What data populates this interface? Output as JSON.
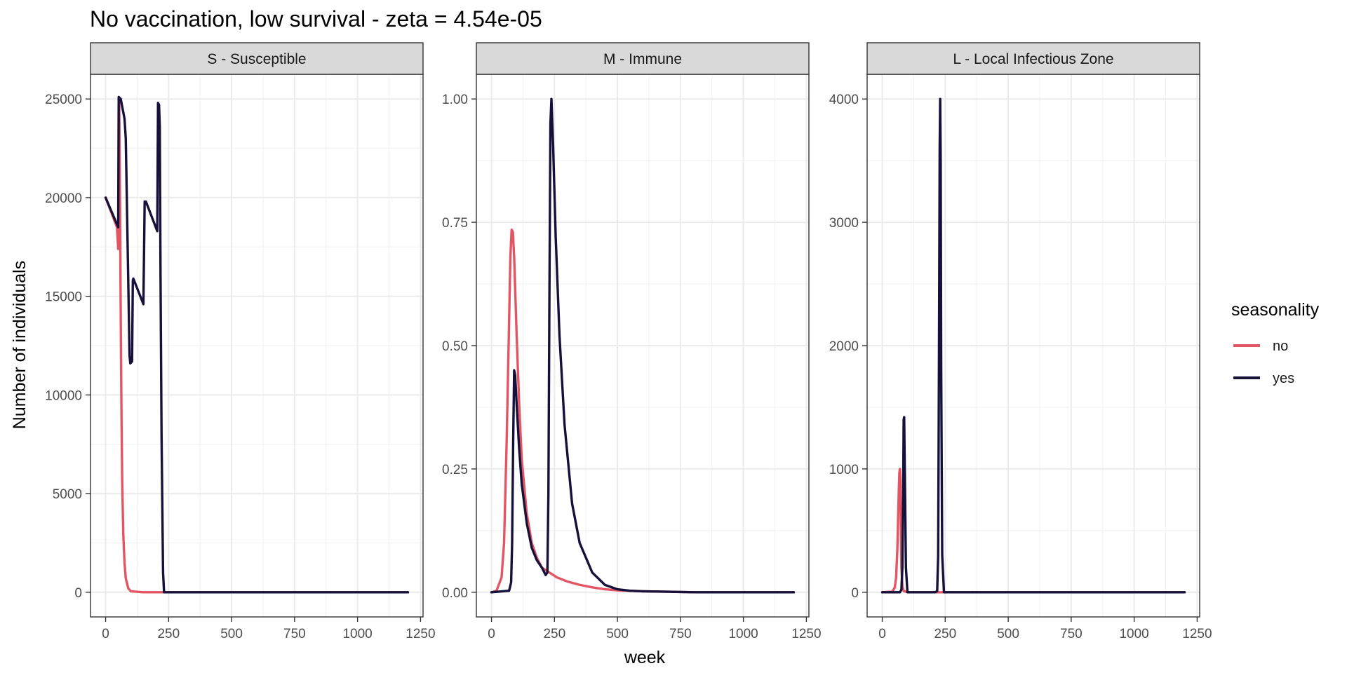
{
  "chart_data": {
    "type": "line",
    "title": "No vaccination, low survival - zeta = 4.54e-05",
    "xlabel": "week",
    "ylabel": "Number of individuals",
    "grid": true,
    "legend": {
      "title": "seasonality",
      "placement": "right",
      "entries": [
        {
          "label": "no",
          "color": "#e45563"
        },
        {
          "label": "yes",
          "color": "#15113a"
        }
      ]
    },
    "x_ticks": [
      0,
      250,
      500,
      750,
      1000,
      1250
    ],
    "x_tick_labels": [
      "0",
      "250",
      "500",
      "750",
      "1000",
      "1250"
    ],
    "panels": [
      {
        "strip": "S - Susceptible",
        "xlim": [
          -60,
          1260
        ],
        "ylim": [
          -1250,
          26250
        ],
        "y_ticks": [
          0,
          5000,
          10000,
          15000,
          20000,
          25000
        ],
        "y_tick_labels": [
          "0",
          "5000",
          "10000",
          "15000",
          "20000",
          "25000"
        ],
        "series": [
          {
            "name": "no",
            "color": "#e45563",
            "x": [
              0,
              45,
              50,
              52,
              54,
              55,
              57,
              60,
              63,
              66,
              70,
              75,
              80,
              90,
              100,
              150,
              250,
              600,
              1200
            ],
            "y": [
              20000,
              18500,
              17400,
              18000,
              25000,
              23500,
              20000,
              14000,
              9000,
              5500,
              3000,
              1500,
              700,
              200,
              50,
              0,
              0,
              0,
              0
            ]
          },
          {
            "name": "yes",
            "color": "#15113a",
            "x": [
              0,
              50,
              52,
              60,
              75,
              80,
              95,
              98,
              105,
              108,
              110,
              150,
              155,
              160,
              205,
              208,
              212,
              215,
              218,
              222,
              228,
              232,
              240,
              600,
              1200
            ],
            "y": [
              20000,
              18500,
              25100,
              25000,
              24000,
              23000,
              12000,
              11600,
              11700,
              15800,
              15900,
              14600,
              19800,
              19800,
              18300,
              24800,
              24700,
              23600,
              16000,
              8000,
              1000,
              0,
              0,
              0,
              0
            ]
          }
        ]
      },
      {
        "strip": "M - Immune",
        "xlim": [
          -60,
          1260
        ],
        "ylim": [
          -0.05,
          1.05
        ],
        "y_ticks": [
          0,
          0.25,
          0.5,
          0.75,
          1.0
        ],
        "y_tick_labels": [
          "0.00",
          "0.25",
          "0.50",
          "0.75",
          "1.00"
        ],
        "series": [
          {
            "name": "no",
            "color": "#e45563",
            "x": [
              0,
              20,
              40,
              50,
              60,
              70,
              75,
              80,
              85,
              90,
              95,
              100,
              110,
              120,
              140,
              160,
              180,
              200,
              230,
              260,
              300,
              350,
              400,
              450,
              500,
              600,
              700,
              800,
              1200
            ],
            "y": [
              0,
              0.003,
              0.03,
              0.1,
              0.3,
              0.55,
              0.68,
              0.735,
              0.73,
              0.68,
              0.6,
              0.52,
              0.38,
              0.27,
              0.16,
              0.1,
              0.07,
              0.05,
              0.04,
              0.03,
              0.022,
              0.015,
              0.01,
              0.006,
              0.004,
              0.002,
              0.001,
              0,
              0
            ]
          },
          {
            "name": "yes",
            "color": "#15113a",
            "x": [
              0,
              70,
              78,
              82,
              86,
              90,
              94,
              100,
              110,
              120,
              140,
              160,
              180,
              200,
              215,
              222,
              226,
              230,
              234,
              238,
              245,
              255,
              270,
              290,
              320,
              350,
              400,
              450,
              500,
              550,
              600,
              700,
              800,
              1200
            ],
            "y": [
              0,
              0.003,
              0.02,
              0.1,
              0.3,
              0.45,
              0.44,
              0.38,
              0.29,
              0.22,
              0.14,
              0.09,
              0.065,
              0.05,
              0.035,
              0.04,
              0.2,
              0.6,
              0.95,
              1.0,
              0.9,
              0.72,
              0.52,
              0.34,
              0.18,
              0.1,
              0.04,
              0.015,
              0.006,
              0.003,
              0.002,
              0.001,
              0,
              0
            ]
          }
        ]
      },
      {
        "strip": "L - Local Infectious Zone",
        "xlim": [
          -60,
          1260
        ],
        "ylim": [
          -200,
          4200
        ],
        "y_ticks": [
          0,
          1000,
          2000,
          3000,
          4000
        ],
        "y_tick_labels": [
          "0",
          "1000",
          "2000",
          "3000",
          "4000"
        ],
        "series": [
          {
            "name": "no",
            "color": "#e45563",
            "x": [
              0,
              40,
              50,
              55,
              60,
              63,
              66,
              68,
              70,
              72,
              74,
              76,
              80,
              85,
              100,
              1200
            ],
            "y": [
              0,
              5,
              40,
              120,
              350,
              600,
              850,
              970,
              1000,
              900,
              500,
              200,
              50,
              10,
              0,
              0
            ]
          },
          {
            "name": "yes",
            "color": "#15113a",
            "x": [
              0,
              70,
              76,
              80,
              83,
              85,
              87,
              90,
              94,
              100,
              210,
              218,
              222,
              225,
              228,
              230,
              232,
              234,
              238,
              245,
              1200
            ],
            "y": [
              0,
              0,
              20,
              200,
              800,
              1400,
              1420,
              900,
              200,
              0,
              0,
              10,
              300,
              1800,
              3600,
              4000,
              3500,
              1800,
              300,
              0,
              0
            ]
          }
        ]
      }
    ]
  }
}
